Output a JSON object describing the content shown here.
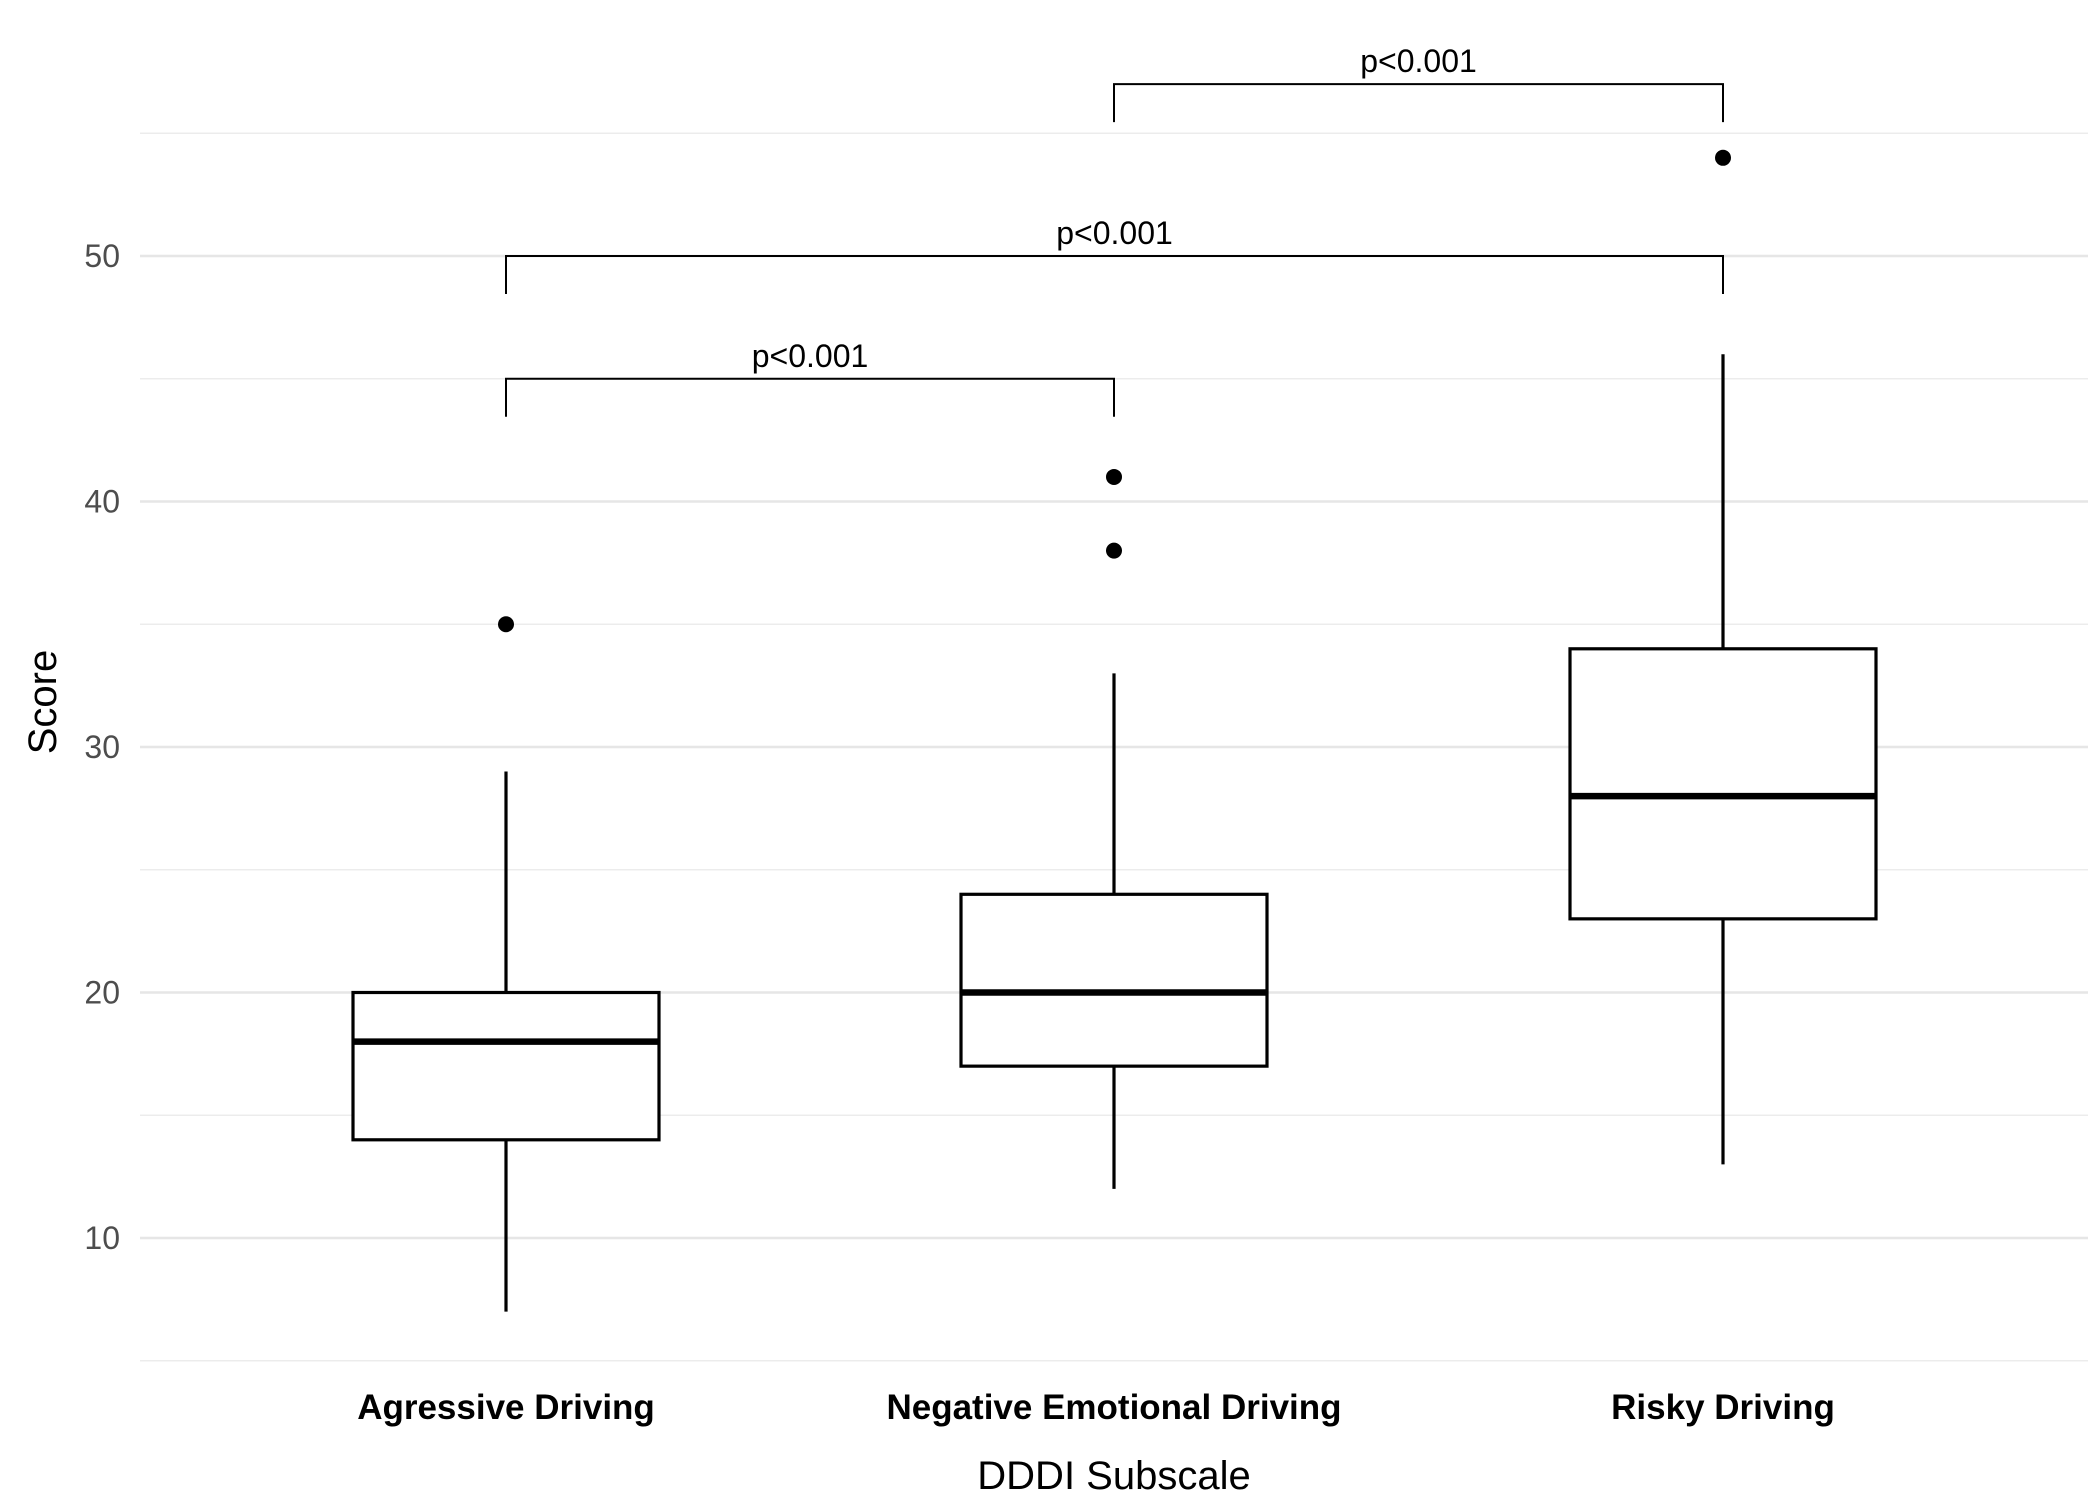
{
  "chart_data": {
    "type": "box",
    "title": "",
    "xlabel": "DDDI Subscale",
    "ylabel": "Score",
    "ylim": [
      5,
      57.5
    ],
    "y_ticks": [
      10,
      20,
      30,
      40,
      50
    ],
    "y_tick_labels": [
      "10",
      "20",
      "30",
      "40",
      "50"
    ],
    "grid": true,
    "categories": [
      "Agressive Driving",
      "Negative Emotional Driving",
      "Risky Driving"
    ],
    "boxes": [
      {
        "category": "Agressive Driving",
        "whisker_low": 7,
        "q1": 14,
        "median": 18,
        "q3": 20,
        "whisker_high": 29,
        "outliers": [
          35
        ]
      },
      {
        "category": "Negative Emotional Driving",
        "whisker_low": 12,
        "q1": 17,
        "median": 20,
        "q3": 24,
        "whisker_high": 33,
        "outliers": [
          38,
          41
        ]
      },
      {
        "category": "Risky Driving",
        "whisker_low": 13,
        "q1": 23,
        "median": 28,
        "q3": 34,
        "whisker_high": 46,
        "outliers": [
          54
        ]
      }
    ],
    "comparisons": [
      {
        "from": 0,
        "to": 1,
        "y": 45,
        "label": "p<0.001"
      },
      {
        "from": 0,
        "to": 2,
        "y": 50,
        "label": "p<0.001"
      },
      {
        "from": 1,
        "to": 2,
        "y": 57,
        "label": "p<0.001"
      }
    ]
  }
}
